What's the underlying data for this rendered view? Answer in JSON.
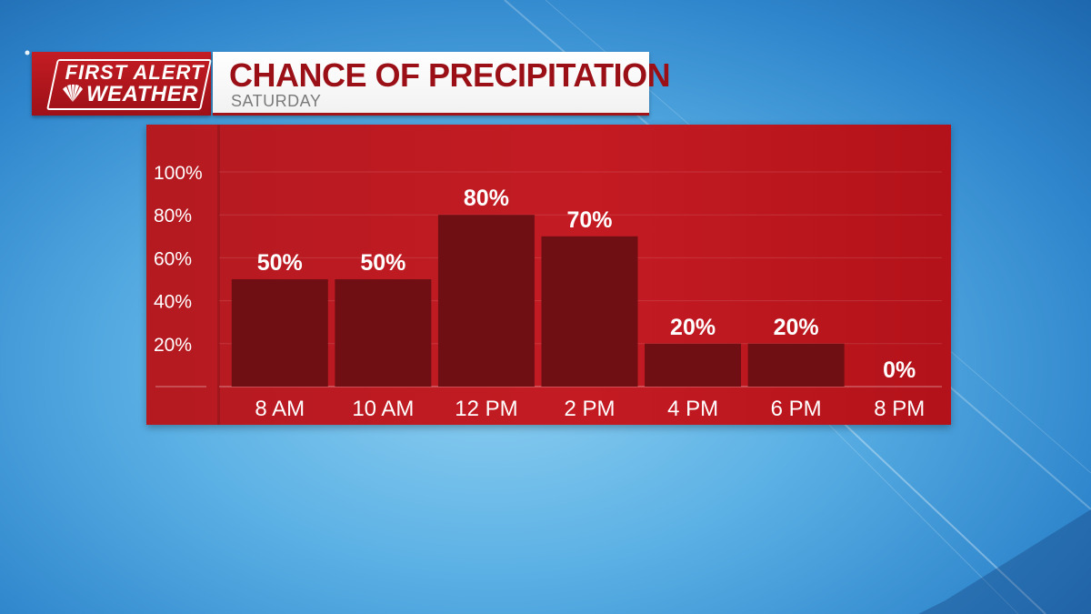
{
  "header": {
    "logo_line1": "FIRST ALERT",
    "logo_line2": "WEATHER",
    "title": "CHANCE OF PRECIPITATION",
    "subtitle": "SATURDAY"
  },
  "colors": {
    "brand_red": "#c41b23",
    "bar_dark_red": "#6f0f14",
    "title_red": "#9a1016",
    "sky_blue": "#5ab0e4"
  },
  "chart_data": {
    "type": "bar",
    "title": "CHANCE OF PRECIPITATION",
    "subtitle": "SATURDAY",
    "xlabel": "",
    "ylabel": "",
    "categories": [
      "8 AM",
      "10 AM",
      "12 PM",
      "2 PM",
      "4 PM",
      "6 PM",
      "8 PM"
    ],
    "values": [
      50,
      50,
      80,
      70,
      20,
      20,
      0
    ],
    "data_labels": [
      "50%",
      "50%",
      "80%",
      "70%",
      "20%",
      "20%",
      "0%"
    ],
    "yticks": [
      "20%",
      "40%",
      "60%",
      "80%",
      "100%"
    ],
    "ytick_values": [
      20,
      40,
      60,
      80,
      100
    ],
    "ylim": [
      0,
      100
    ],
    "grid": true
  }
}
